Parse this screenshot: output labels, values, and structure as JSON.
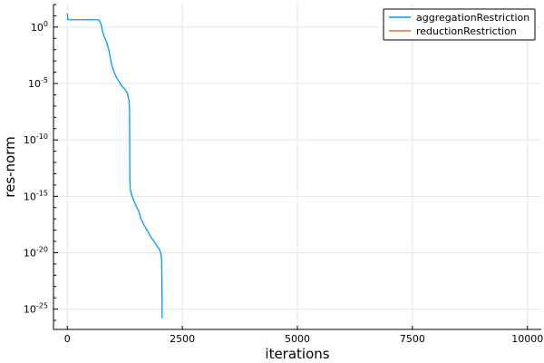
{
  "chart_data": {
    "type": "line",
    "title": "",
    "xlabel": "iterations",
    "ylabel": "res-norm",
    "xscale": "linear",
    "yscale": "log",
    "xlim": [
      -300,
      10300
    ],
    "ylim_exponent": [
      -26.8,
      2.0
    ],
    "grid": true,
    "legend_position": "top-right",
    "x_ticks": [
      {
        "value": 0,
        "label": "0"
      },
      {
        "value": 2500,
        "label": "2500"
      },
      {
        "value": 5000,
        "label": "5000"
      },
      {
        "value": 7500,
        "label": "7500"
      },
      {
        "value": 10000,
        "label": "10000"
      }
    ],
    "y_ticks": [
      {
        "exp": 0,
        "label": "10^0"
      },
      {
        "exp": -5,
        "label": "10^-5"
      },
      {
        "exp": -10,
        "label": "10^-10"
      },
      {
        "exp": -15,
        "label": "10^-15"
      },
      {
        "exp": -20,
        "label": "10^-20"
      },
      {
        "exp": -25,
        "label": "10^-25"
      }
    ],
    "series": [
      {
        "name": "aggregationRestriction",
        "color": "#009af9",
        "x": [
          0,
          3,
          10,
          30,
          100,
          300,
          500,
          650,
          680,
          700,
          720,
          740,
          760,
          800,
          850,
          900,
          940,
          960,
          1000,
          1050,
          1100,
          1150,
          1200,
          1250,
          1300,
          1320,
          1340,
          1350,
          1355,
          1358,
          1360,
          1365,
          1370,
          1380,
          1400,
          1450,
          1500,
          1550,
          1600,
          1650,
          1700,
          1750,
          1800,
          1850,
          1900,
          1950,
          2000,
          2020,
          2040,
          2050,
          2055,
          2058,
          2060,
          2062
        ],
        "y_exp": [
          1.2,
          1.1,
          0.7,
          0.65,
          0.65,
          0.65,
          0.65,
          0.65,
          0.62,
          0.55,
          0.4,
          0.2,
          -0.3,
          -0.8,
          -1.3,
          -2.0,
          -2.8,
          -3.3,
          -3.8,
          -4.3,
          -4.7,
          -5.0,
          -5.3,
          -5.5,
          -5.8,
          -6.1,
          -6.5,
          -7.0,
          -9.0,
          -12.0,
          -13.5,
          -14.1,
          -14.3,
          -14.6,
          -14.9,
          -15.4,
          -15.9,
          -16.3,
          -17.0,
          -17.4,
          -17.8,
          -18.1,
          -18.5,
          -18.8,
          -19.1,
          -19.4,
          -19.7,
          -19.9,
          -20.2,
          -20.7,
          -22.0,
          -24.0,
          -25.5,
          -25.8
        ]
      },
      {
        "name": "reductionRestriction",
        "color": "#e26f46",
        "x": [],
        "y_exp": []
      }
    ]
  }
}
